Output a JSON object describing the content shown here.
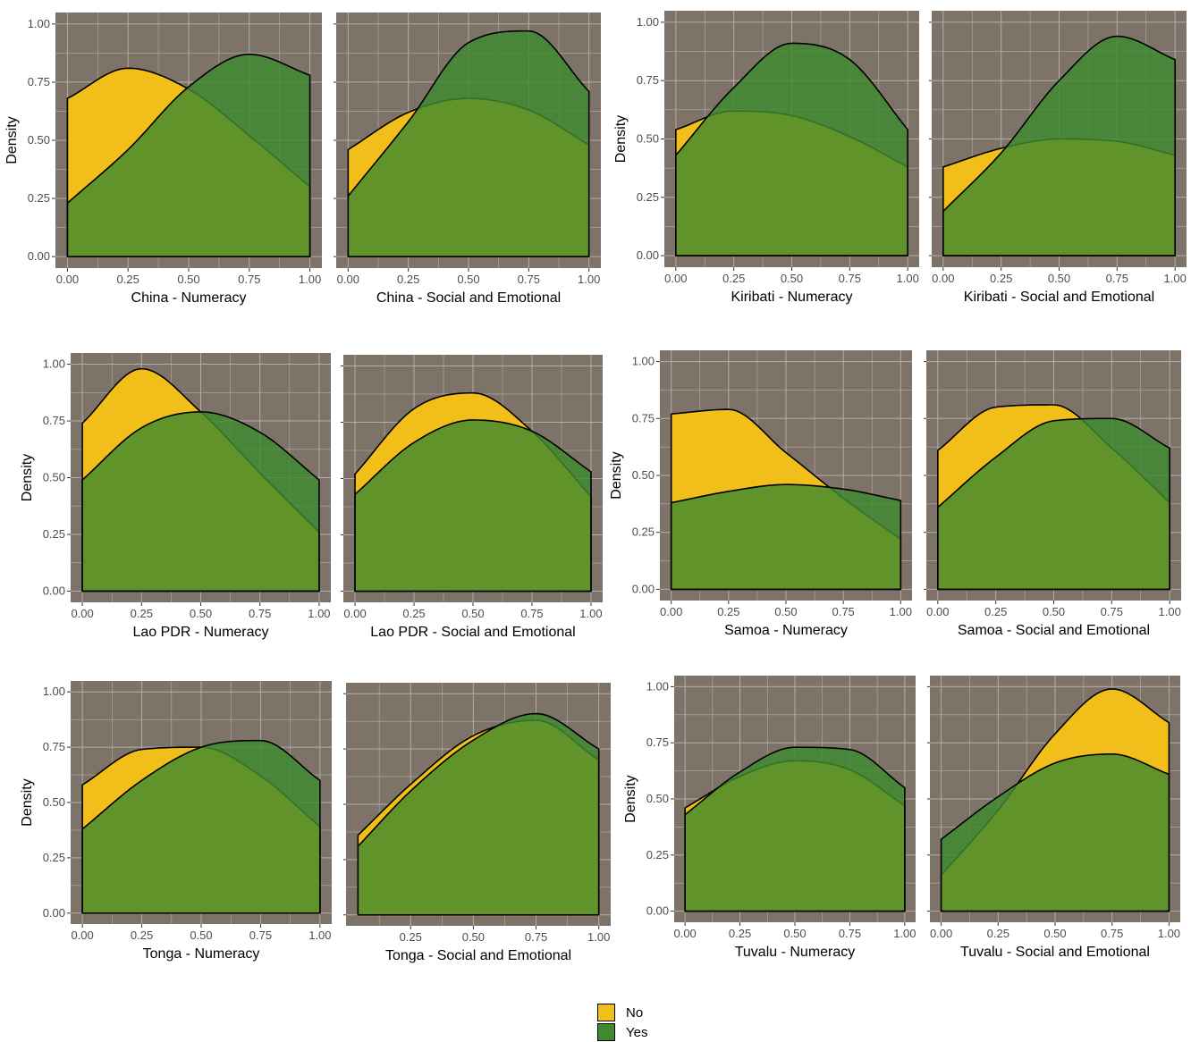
{
  "legend": {
    "items": [
      {
        "label": "No",
        "color": "#F2BE1A"
      },
      {
        "label": "Yes",
        "color": "#3F8A2E"
      }
    ]
  },
  "colors": {
    "panel_bg": "#7D7368",
    "grid": "#B5AEA6",
    "no": "#F2BE1A",
    "yes": "#3F8A2E"
  },
  "chart_data": [
    {
      "type": "area",
      "xlabel": "China - Numeracy",
      "ylabel": "Density",
      "xlim": [
        0,
        1
      ],
      "ylim": [
        0,
        1
      ],
      "x_ticks": [
        "0.00",
        "0.25",
        "0.50",
        "0.75",
        "1.00"
      ],
      "y_ticks": [
        "0.00",
        "0.25",
        "0.50",
        "0.75",
        "1.00"
      ],
      "series": [
        {
          "name": "No",
          "x": [
            0,
            0.25,
            0.5,
            0.75,
            1
          ],
          "values": [
            0.68,
            0.81,
            0.72,
            0.52,
            0.3
          ]
        },
        {
          "name": "Yes",
          "x": [
            0,
            0.25,
            0.5,
            0.75,
            1
          ],
          "values": [
            0.23,
            0.46,
            0.73,
            0.87,
            0.78
          ]
        }
      ]
    },
    {
      "type": "area",
      "xlabel": "China - Social and Emotional",
      "ylabel": "",
      "xlim": [
        0,
        1
      ],
      "ylim": [
        0,
        1
      ],
      "x_ticks": [
        "0.00",
        "0.25",
        "0.50",
        "0.75",
        "1.00"
      ],
      "y_ticks": [],
      "series": [
        {
          "name": "No",
          "x": [
            0,
            0.25,
            0.5,
            0.75,
            1
          ],
          "values": [
            0.46,
            0.62,
            0.68,
            0.63,
            0.48
          ]
        },
        {
          "name": "Yes",
          "x": [
            0,
            0.25,
            0.5,
            0.75,
            1
          ],
          "values": [
            0.26,
            0.58,
            0.92,
            0.97,
            0.71
          ]
        }
      ]
    },
    {
      "type": "area",
      "xlabel": "Kiribati - Numeracy",
      "ylabel": "Density",
      "xlim": [
        0,
        1
      ],
      "ylim": [
        0,
        1
      ],
      "x_ticks": [
        "0.00",
        "0.25",
        "0.50",
        "0.75",
        "1.00"
      ],
      "y_ticks": [
        "0.00",
        "0.25",
        "0.50",
        "0.75",
        "1.00"
      ],
      "series": [
        {
          "name": "No",
          "x": [
            0,
            0.25,
            0.5,
            0.75,
            1
          ],
          "values": [
            0.54,
            0.62,
            0.6,
            0.51,
            0.38
          ]
        },
        {
          "name": "Yes",
          "x": [
            0,
            0.25,
            0.5,
            0.75,
            1
          ],
          "values": [
            0.43,
            0.72,
            0.91,
            0.84,
            0.54
          ]
        }
      ]
    },
    {
      "type": "area",
      "xlabel": "Kiribati - Social and Emotional",
      "ylabel": "",
      "xlim": [
        0,
        1
      ],
      "ylim": [
        0,
        1
      ],
      "x_ticks": [
        "0.00",
        "0.25",
        "0.50",
        "0.75",
        "1.00"
      ],
      "y_ticks": [],
      "series": [
        {
          "name": "No",
          "x": [
            0,
            0.25,
            0.5,
            0.75,
            1
          ],
          "values": [
            0.38,
            0.46,
            0.5,
            0.49,
            0.43
          ]
        },
        {
          "name": "Yes",
          "x": [
            0,
            0.25,
            0.5,
            0.75,
            1
          ],
          "values": [
            0.19,
            0.44,
            0.75,
            0.94,
            0.84
          ]
        }
      ]
    },
    {
      "type": "area",
      "xlabel": "Lao PDR - Numeracy",
      "ylabel": "Density",
      "xlim": [
        0,
        1
      ],
      "ylim": [
        0,
        1
      ],
      "x_ticks": [
        "0.00",
        "0.25",
        "0.50",
        "0.75",
        "1.00"
      ],
      "y_ticks": [
        "0.00",
        "0.25",
        "0.50",
        "0.75",
        "1.00"
      ],
      "series": [
        {
          "name": "No",
          "x": [
            0,
            0.25,
            0.5,
            0.75,
            1
          ],
          "values": [
            0.74,
            0.98,
            0.79,
            0.52,
            0.26
          ]
        },
        {
          "name": "Yes",
          "x": [
            0,
            0.25,
            0.5,
            0.75,
            1
          ],
          "values": [
            0.49,
            0.72,
            0.79,
            0.7,
            0.49
          ]
        }
      ]
    },
    {
      "type": "area",
      "xlabel": "Lao PDR - Social and Emotional",
      "ylabel": "",
      "xlim": [
        0,
        1
      ],
      "ylim": [
        0,
        1
      ],
      "x_ticks": [
        "0.00",
        "0.25",
        "0.50",
        "0.75",
        "1.00"
      ],
      "y_ticks": [],
      "series": [
        {
          "name": "No",
          "x": [
            0,
            0.25,
            0.5,
            0.75,
            1
          ],
          "values": [
            0.52,
            0.81,
            0.88,
            0.71,
            0.42
          ]
        },
        {
          "name": "Yes",
          "x": [
            0,
            0.25,
            0.5,
            0.75,
            1
          ],
          "values": [
            0.43,
            0.66,
            0.76,
            0.71,
            0.53
          ]
        }
      ]
    },
    {
      "type": "area",
      "xlabel": "Samoa - Numeracy",
      "ylabel": "Density",
      "xlim": [
        0,
        1
      ],
      "ylim": [
        0,
        1
      ],
      "x_ticks": [
        "0.00",
        "0.25",
        "0.50",
        "0.75",
        "1.00"
      ],
      "y_ticks": [
        "0.00",
        "0.25",
        "0.50",
        "0.75",
        "1.00"
      ],
      "series": [
        {
          "name": "No",
          "x": [
            0,
            0.25,
            0.5,
            0.75,
            1
          ],
          "values": [
            0.77,
            0.79,
            0.6,
            0.4,
            0.22
          ]
        },
        {
          "name": "Yes",
          "x": [
            0,
            0.25,
            0.5,
            0.75,
            1
          ],
          "values": [
            0.38,
            0.43,
            0.46,
            0.44,
            0.39
          ]
        }
      ]
    },
    {
      "type": "area",
      "xlabel": "Samoa - Social and Emotional",
      "ylabel": "",
      "xlim": [
        0,
        1
      ],
      "ylim": [
        0,
        1
      ],
      "x_ticks": [
        "0.00",
        "0.25",
        "0.50",
        "0.75",
        "1.00"
      ],
      "y_ticks": [],
      "series": [
        {
          "name": "No",
          "x": [
            0,
            0.25,
            0.5,
            0.75,
            1
          ],
          "values": [
            0.61,
            0.8,
            0.81,
            0.62,
            0.38
          ]
        },
        {
          "name": "Yes",
          "x": [
            0,
            0.25,
            0.5,
            0.75,
            1
          ],
          "values": [
            0.36,
            0.58,
            0.74,
            0.75,
            0.62
          ]
        }
      ]
    },
    {
      "type": "area",
      "xlabel": "Tonga - Numeracy",
      "ylabel": "Density",
      "xlim": [
        0,
        1
      ],
      "ylim": [
        0,
        1
      ],
      "x_ticks": [
        "0.00",
        "0.25",
        "0.50",
        "0.75",
        "1.00"
      ],
      "y_ticks": [
        "0.00",
        "0.25",
        "0.50",
        "0.75",
        "1.00"
      ],
      "series": [
        {
          "name": "No",
          "x": [
            0,
            0.25,
            0.5,
            0.75,
            1
          ],
          "values": [
            0.58,
            0.74,
            0.75,
            0.62,
            0.39
          ]
        },
        {
          "name": "Yes",
          "x": [
            0,
            0.25,
            0.5,
            0.75,
            1
          ],
          "values": [
            0.38,
            0.6,
            0.75,
            0.78,
            0.6
          ]
        }
      ]
    },
    {
      "type": "area",
      "xlabel": "Tonga - Social and Emotional",
      "ylabel": "",
      "xlim": [
        0.04,
        1
      ],
      "ylim": [
        0,
        1
      ],
      "x_ticks": [
        "0.25",
        "0.50",
        "0.75",
        "1.00"
      ],
      "y_ticks": [],
      "series": [
        {
          "name": "No",
          "x": [
            0.04,
            0.25,
            0.5,
            0.75,
            1
          ],
          "values": [
            0.36,
            0.59,
            0.81,
            0.88,
            0.7
          ]
        },
        {
          "name": "Yes",
          "x": [
            0.04,
            0.25,
            0.5,
            0.75,
            1
          ],
          "values": [
            0.31,
            0.56,
            0.79,
            0.91,
            0.75
          ]
        }
      ]
    },
    {
      "type": "area",
      "xlabel": "Tuvalu - Numeracy",
      "ylabel": "Density",
      "xlim": [
        0,
        1
      ],
      "ylim": [
        0,
        1
      ],
      "x_ticks": [
        "0.00",
        "0.25",
        "0.50",
        "0.75",
        "1.00"
      ],
      "y_ticks": [
        "0.00",
        "0.25",
        "0.50",
        "0.75",
        "1.00"
      ],
      "series": [
        {
          "name": "No",
          "x": [
            0,
            0.25,
            0.5,
            0.75,
            1
          ],
          "values": [
            0.46,
            0.6,
            0.67,
            0.63,
            0.47
          ]
        },
        {
          "name": "Yes",
          "x": [
            0,
            0.25,
            0.5,
            0.75,
            1
          ],
          "values": [
            0.43,
            0.62,
            0.73,
            0.72,
            0.55
          ]
        }
      ]
    },
    {
      "type": "area",
      "xlabel": "Tuvalu - Social and Emotional",
      "ylabel": "",
      "xlim": [
        0,
        1
      ],
      "ylim": [
        0,
        1
      ],
      "x_ticks": [
        "0.00",
        "0.25",
        "0.50",
        "0.75",
        "1.00"
      ],
      "y_ticks": [],
      "series": [
        {
          "name": "No",
          "x": [
            0,
            0.25,
            0.5,
            0.75,
            1
          ],
          "values": [
            0.16,
            0.45,
            0.79,
            0.99,
            0.84
          ]
        },
        {
          "name": "Yes",
          "x": [
            0,
            0.25,
            0.5,
            0.75,
            1
          ],
          "values": [
            0.32,
            0.51,
            0.66,
            0.7,
            0.61
          ]
        }
      ]
    }
  ]
}
